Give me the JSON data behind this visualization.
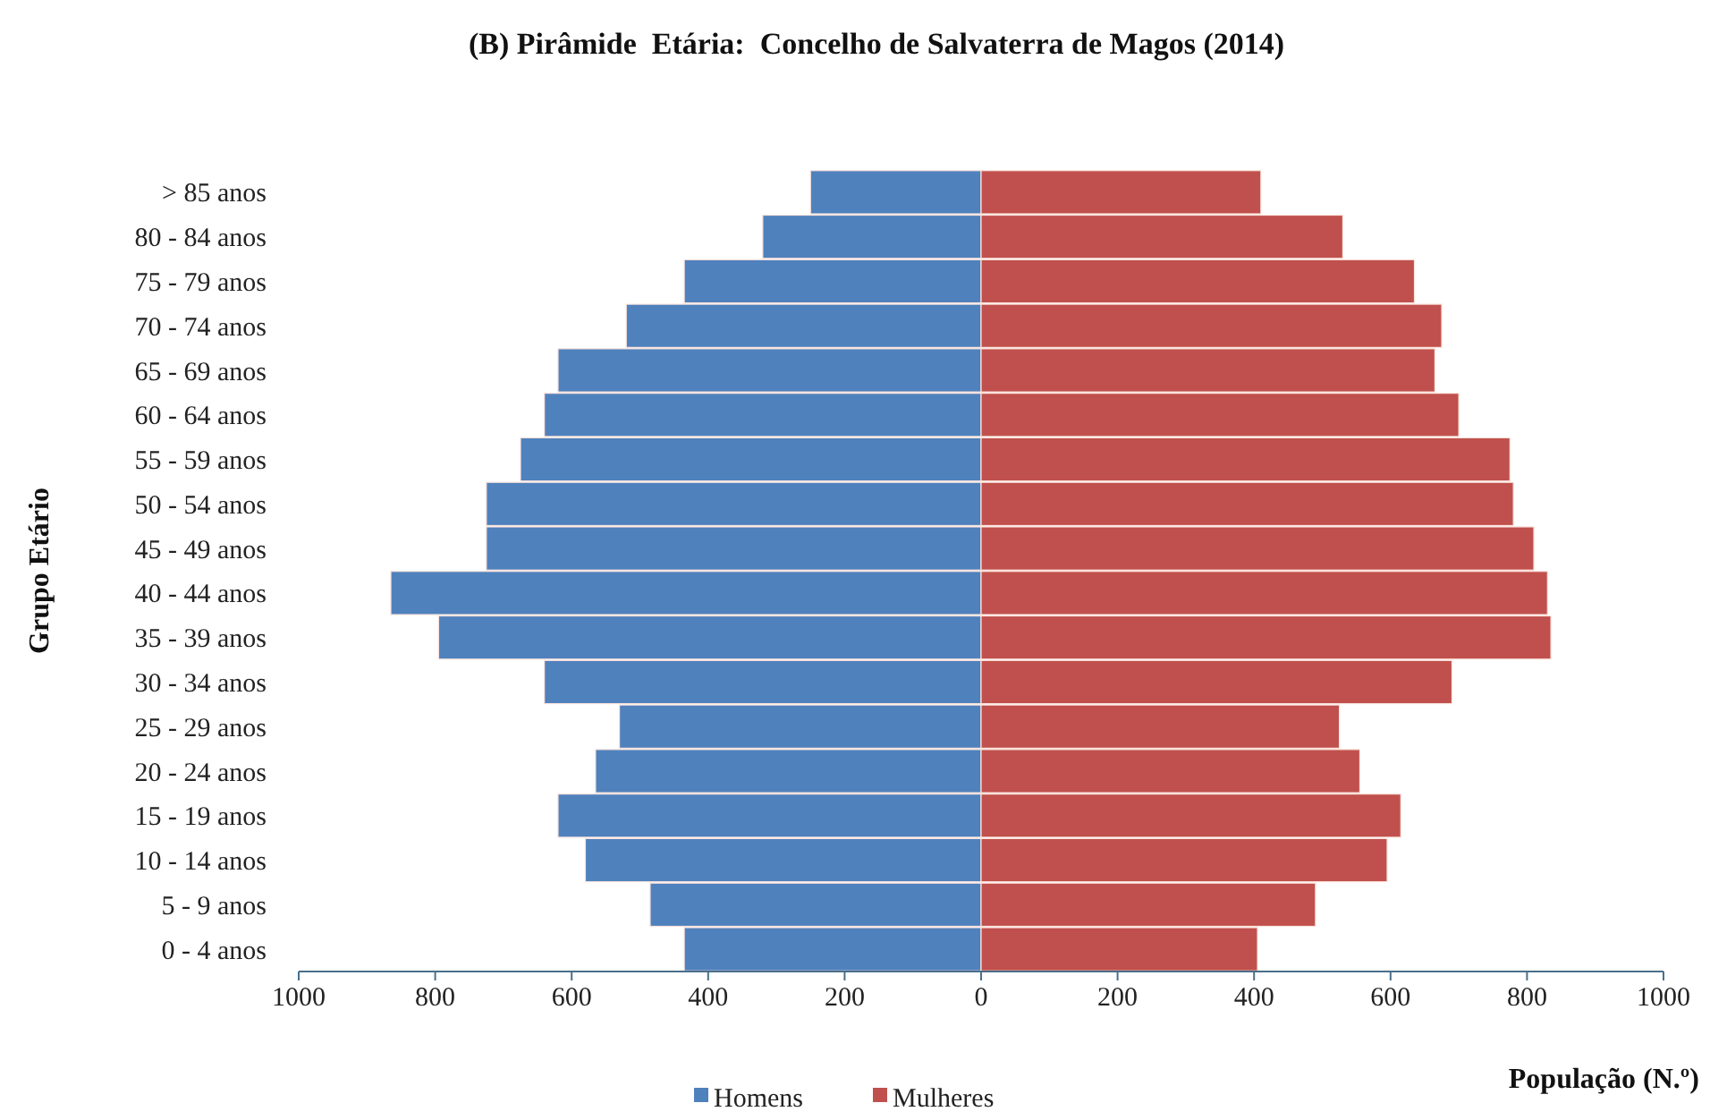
{
  "chart_data": {
    "type": "bar",
    "orientation": "horizontal",
    "stacked": true,
    "title": "(B) Pirâmide  Etária:  Concelho de Salvaterra de Magos (2014)",
    "xlabel": "População (N.º)",
    "ylabel": "Grupo Etário",
    "categories": [
      "> 85 anos",
      "80 - 84 anos",
      "75 - 79 anos",
      "70 - 74 anos",
      "65 - 69 anos",
      "60 - 64 anos",
      "55 - 59 anos",
      "50 - 54 anos",
      "45 - 49 anos",
      "40 - 44 anos",
      "35 - 39 anos",
      "30 - 34 anos",
      "25 - 29 anos",
      "20 - 24 anos",
      "15 - 19 anos",
      "10 - 14 anos",
      "5 - 9 anos",
      "0 - 4 anos"
    ],
    "series": [
      {
        "name": "Homens",
        "color": "#4f81bd",
        "values": [
          -250,
          -320,
          -435,
          -520,
          -620,
          -640,
          -675,
          -725,
          -725,
          -865,
          -795,
          -640,
          -530,
          -565,
          -620,
          -580,
          -485,
          -435
        ]
      },
      {
        "name": "Mulheres",
        "color": "#c0504d",
        "values": [
          410,
          530,
          635,
          675,
          665,
          700,
          775,
          780,
          810,
          830,
          835,
          690,
          525,
          555,
          615,
          595,
          490,
          405
        ]
      }
    ],
    "xlim": [
      -1000,
      1000
    ],
    "xticks": [
      {
        "value": -1000,
        "label": "1000"
      },
      {
        "value": -800,
        "label": "800"
      },
      {
        "value": -600,
        "label": "600"
      },
      {
        "value": -400,
        "label": "400"
      },
      {
        "value": -200,
        "label": "200"
      },
      0,
      200,
      400,
      600,
      800,
      1000
    ],
    "grid": false,
    "legend": "bottom"
  }
}
